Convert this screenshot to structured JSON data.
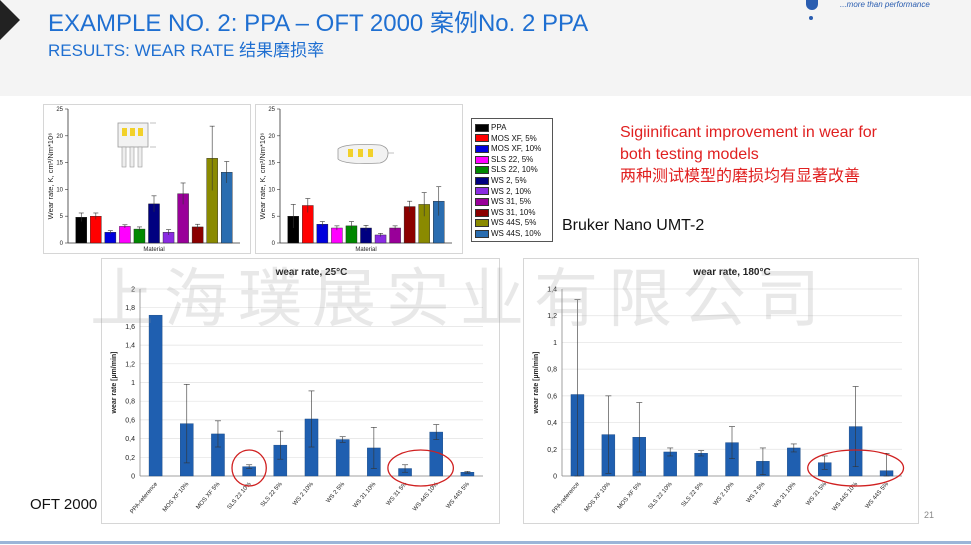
{
  "slide": {
    "title": "EXAMPLE NO. 2: PPA – OFT 2000 案例No. 2 PPA",
    "subtitle": "RESULTS: WEAR RATE 结果磨损率",
    "tagline": "...more than performance",
    "note_en": "Sigiinificant improvement in wear for both testing models",
    "note_cn": "两种测试模型的磨损均有显著改善",
    "instrument": "Bruker Nano UMT-2",
    "method": "OFT 2000",
    "page_number": "21",
    "watermark": "上海璞展实业有限公司",
    "colors": {
      "title": "#1f6fd1",
      "note": "#e02020",
      "bar_blue": "#1f5fb0",
      "highlight_ring": "#d02020"
    }
  },
  "legend": {
    "items": [
      {
        "label": "PPA",
        "color": "#000000"
      },
      {
        "label": "MOS XF, 5%",
        "color": "#ff0000"
      },
      {
        "label": "MOS XF, 10%",
        "color": "#0000dd"
      },
      {
        "label": "SLS 22, 5%",
        "color": "#ff00ff"
      },
      {
        "label": "SLS 22, 10%",
        "color": "#008800"
      },
      {
        "label": "WS 2, 5%",
        "color": "#000080"
      },
      {
        "label": "WS 2, 10%",
        "color": "#8a2be2"
      },
      {
        "label": "WS 31, 5%",
        "color": "#990099"
      },
      {
        "label": "WS 31, 10%",
        "color": "#8b0000"
      },
      {
        "label": "WS 44S, 5%",
        "color": "#8a8a00"
      },
      {
        "label": "WS 44S, 10%",
        "color": "#2a6db0"
      }
    ]
  },
  "chart_data": [
    {
      "type": "bar",
      "title": "",
      "xlabel": "Material",
      "ylabel": "Wear rate, K, cm³/Nm*10⁶",
      "ylim": [
        0,
        25
      ],
      "yticks": [
        "0",
        "5",
        "10",
        "15",
        "20",
        "25"
      ],
      "categories": [
        "PPA",
        "MOS XF, 5%",
        "MOS XF, 10%",
        "SLS 22, 5%",
        "SLS 22, 10%",
        "WS 2, 5%",
        "WS 2, 10%",
        "WS 31, 5%",
        "WS 31, 10%",
        "WS 44S, 5%",
        "WS 44S, 10%"
      ],
      "values": [
        4.8,
        5.0,
        2.0,
        3.1,
        2.6,
        7.3,
        2.0,
        9.2,
        3.0,
        15.8,
        13.2
      ],
      "errors": [
        0.8,
        0.6,
        0.3,
        0.3,
        0.4,
        1.5,
        0.5,
        2.0,
        0.5,
        6.0,
        2.0
      ]
    },
    {
      "type": "bar",
      "title": "",
      "xlabel": "Material",
      "ylabel": "Wear rate, K, cm³/Nm*10⁶",
      "ylim": [
        0,
        25
      ],
      "yticks": [
        "0",
        "5",
        "10",
        "15",
        "20",
        "25"
      ],
      "categories": [
        "PPA",
        "MOS XF, 5%",
        "MOS XF, 10%",
        "SLS 22, 5%",
        "SLS 22, 10%",
        "WS 2, 5%",
        "WS 2, 10%",
        "WS 31, 5%",
        "WS 31, 10%",
        "WS 44S, 5%",
        "WS 44S, 10%"
      ],
      "values": [
        5.0,
        7.0,
        3.5,
        2.8,
        3.2,
        2.8,
        1.5,
        2.8,
        6.8,
        7.2,
        7.8
      ],
      "errors": [
        2.2,
        1.3,
        0.5,
        0.4,
        0.8,
        0.5,
        0.3,
        0.4,
        1.0,
        2.2,
        2.7
      ]
    },
    {
      "type": "bar",
      "title": "wear rate, 25°C",
      "xlabel": "",
      "ylabel": "wear rate [µm/min]",
      "ylim": [
        0,
        2
      ],
      "yticks": [
        "0",
        "0,2",
        "0,4",
        "0,6",
        "0,8",
        "1",
        "1,2",
        "1,4",
        "1,6",
        "1,8",
        "2"
      ],
      "categories": [
        "PPA-reference",
        "MOS XF 10%",
        "MOS XF 5%",
        "SLS 22 10%",
        "SLS 22 5%",
        "WS 2 10%",
        "WS 2 5%",
        "WS 31 10%",
        "WS 31 5%",
        "WS 44S 10%",
        "WS 44S 5%"
      ],
      "values": [
        1.72,
        0.56,
        0.45,
        0.1,
        0.33,
        0.61,
        0.39,
        0.3,
        0.08,
        0.47,
        0.04
      ],
      "errors": [
        0.0,
        0.42,
        0.14,
        0.02,
        0.15,
        0.3,
        0.03,
        0.22,
        0.04,
        0.08,
        0.01
      ],
      "highlighted": [
        "SLS 22 10%",
        "WS 31 5%",
        "WS 44S 10%"
      ]
    },
    {
      "type": "bar",
      "title": "wear rate, 180°C",
      "xlabel": "",
      "ylabel": "wear rate [µm/min]",
      "ylim": [
        0,
        1.4
      ],
      "yticks": [
        "0",
        "0,2",
        "0,4",
        "0,6",
        "0,8",
        "1",
        "1,2",
        "1,4"
      ],
      "categories": [
        "PPA-reference",
        "MOS XF 10%",
        "MOS XF 5%",
        "SLS 22 10%",
        "SLS 22 5%",
        "WS 2 10%",
        "WS 2 5%",
        "WS 31 10%",
        "WS 31 5%",
        "WS 44S 10%",
        "WS 44S 5%"
      ],
      "values": [
        0.61,
        0.31,
        0.29,
        0.18,
        0.17,
        0.25,
        0.11,
        0.21,
        0.1,
        0.37,
        0.04
      ],
      "errors": [
        0.71,
        0.29,
        0.26,
        0.03,
        0.02,
        0.12,
        0.1,
        0.03,
        0.05,
        0.3,
        0.13
      ],
      "highlighted": [
        "WS 31 5%",
        "WS 44S 10%",
        "WS 44S 5%"
      ]
    }
  ]
}
